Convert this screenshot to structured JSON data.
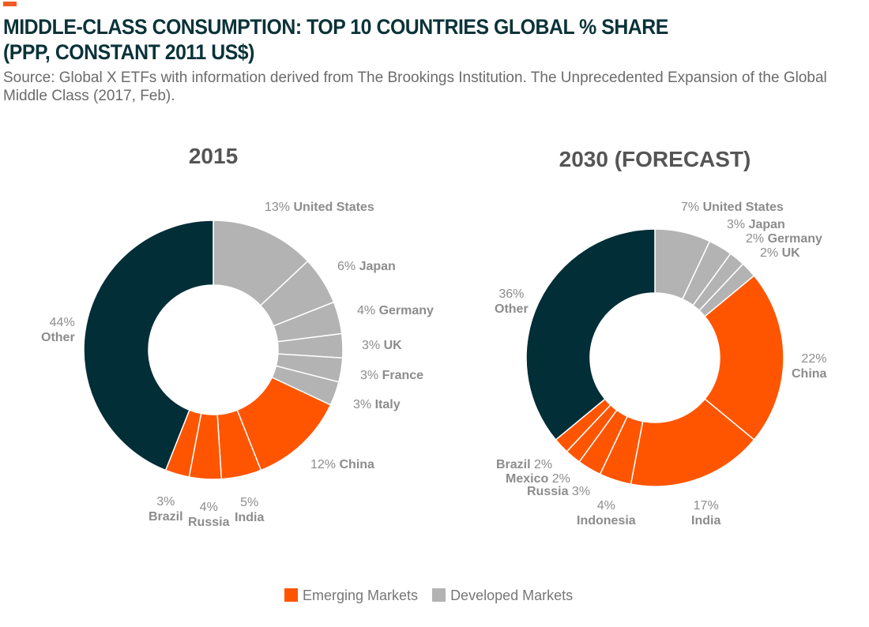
{
  "header": {
    "title_line1": "MIDDLE-CLASS CONSUMPTION: TOP 10 COUNTRIES GLOBAL % SHARE",
    "title_line2": "(PPP, CONSTANT 2011 US$)",
    "source": "Source: Global X ETFs with information derived from The Brookings Institution. The Unprecedented Expansion of the Global Middle Class (2017, Feb)."
  },
  "colors": {
    "emerging": "#ff5500",
    "developed": "#b3b3b3",
    "other": "#022e37",
    "accent": "#f15a22"
  },
  "legend": [
    {
      "label": "Emerging Markets",
      "group": "emerging"
    },
    {
      "label": "Developed Markets",
      "group": "developed"
    }
  ],
  "chart_data": [
    {
      "type": "pie",
      "donut": true,
      "title": "2015",
      "slices": [
        {
          "name": "United States",
          "value": 13,
          "group": "developed"
        },
        {
          "name": "Japan",
          "value": 6,
          "group": "developed"
        },
        {
          "name": "Germany",
          "value": 4,
          "group": "developed"
        },
        {
          "name": "UK",
          "value": 3,
          "group": "developed"
        },
        {
          "name": "France",
          "value": 3,
          "group": "developed"
        },
        {
          "name": "Italy",
          "value": 3,
          "group": "developed"
        },
        {
          "name": "China",
          "value": 12,
          "group": "emerging"
        },
        {
          "name": "India",
          "value": 5,
          "group": "emerging"
        },
        {
          "name": "Russia",
          "value": 4,
          "group": "emerging"
        },
        {
          "name": "Brazil",
          "value": 3,
          "group": "emerging"
        },
        {
          "name": "Other",
          "value": 44,
          "group": "other"
        }
      ]
    },
    {
      "type": "pie",
      "donut": true,
      "title": "2030 (FORECAST)",
      "slices": [
        {
          "name": "United States",
          "value": 7,
          "group": "developed"
        },
        {
          "name": "Japan",
          "value": 3,
          "group": "developed"
        },
        {
          "name": "Germany",
          "value": 2,
          "group": "developed"
        },
        {
          "name": "UK",
          "value": 2,
          "group": "developed"
        },
        {
          "name": "China",
          "value": 22,
          "group": "emerging"
        },
        {
          "name": "India",
          "value": 17,
          "group": "emerging"
        },
        {
          "name": "Indonesia",
          "value": 4,
          "group": "emerging"
        },
        {
          "name": "Russia",
          "value": 3,
          "group": "emerging"
        },
        {
          "name": "Mexico",
          "value": 2,
          "group": "emerging"
        },
        {
          "name": "Brazil",
          "value": 2,
          "group": "emerging"
        },
        {
          "name": "Other",
          "value": 36,
          "group": "other"
        }
      ]
    }
  ]
}
